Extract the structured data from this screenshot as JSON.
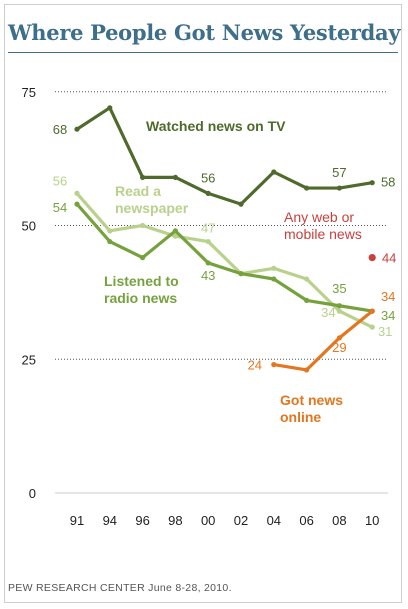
{
  "title": "Where People Got News Yesterday",
  "source": "PEW RESEARCH CENTER June 8-28, 2010.",
  "chart_data": {
    "type": "line",
    "x": [
      "91",
      "94",
      "96",
      "98",
      "00",
      "02",
      "04",
      "06",
      "08",
      "10"
    ],
    "ylim": [
      0,
      75
    ],
    "yticks": [
      "0",
      "25",
      "50",
      "75"
    ],
    "grid": "dotted horizontal",
    "series": [
      {
        "name": "Watched news on TV",
        "color": "#4f6a2c",
        "values": [
          68,
          72,
          59,
          59,
          56,
          54,
          60,
          57,
          57,
          58
        ],
        "labels": [
          {
            "i": 0,
            "text": "68"
          },
          {
            "i": 4,
            "text": "56"
          },
          {
            "i": 8,
            "text": "57"
          },
          {
            "i": 9,
            "text": "58"
          }
        ]
      },
      {
        "name": "Read a newspaper",
        "color": "#b9d18c",
        "values": [
          56,
          49,
          50,
          48,
          47,
          41,
          42,
          40,
          34,
          31
        ],
        "labels": [
          {
            "i": 0,
            "text": "56"
          },
          {
            "i": 4,
            "text": "47"
          },
          {
            "i": 8,
            "text": "34"
          },
          {
            "i": 9,
            "text": "31"
          }
        ]
      },
      {
        "name": "Listened to radio news",
        "color": "#76a23e",
        "values": [
          54,
          47,
          44,
          49,
          43,
          41,
          40,
          36,
          35,
          34
        ],
        "labels": [
          {
            "i": 0,
            "text": "54"
          },
          {
            "i": 4,
            "text": "43"
          },
          {
            "i": 8,
            "text": "35"
          },
          {
            "i": 9,
            "text": "34"
          }
        ]
      },
      {
        "name": "Got news online",
        "color": "#e3761f",
        "values": [
          null,
          null,
          null,
          null,
          null,
          null,
          24,
          23,
          29,
          34
        ],
        "labels": [
          {
            "i": 6,
            "text": "24"
          },
          {
            "i": 8,
            "text": "29"
          },
          {
            "i": 9,
            "text": "34"
          }
        ]
      },
      {
        "name": "Any web or mobile news",
        "color": "#c8413c",
        "values": [
          null,
          null,
          null,
          null,
          null,
          null,
          null,
          null,
          null,
          44
        ],
        "labels": [
          {
            "i": 9,
            "text": "44"
          }
        ]
      }
    ],
    "series_labels": {
      "tv": [
        "Watched news on TV"
      ],
      "newspaper": [
        "Read a",
        "newspaper"
      ],
      "radio": [
        "Listened to",
        "radio news"
      ],
      "online": [
        "Got news",
        "online"
      ],
      "web": [
        "Any web or",
        "mobile news"
      ]
    }
  }
}
